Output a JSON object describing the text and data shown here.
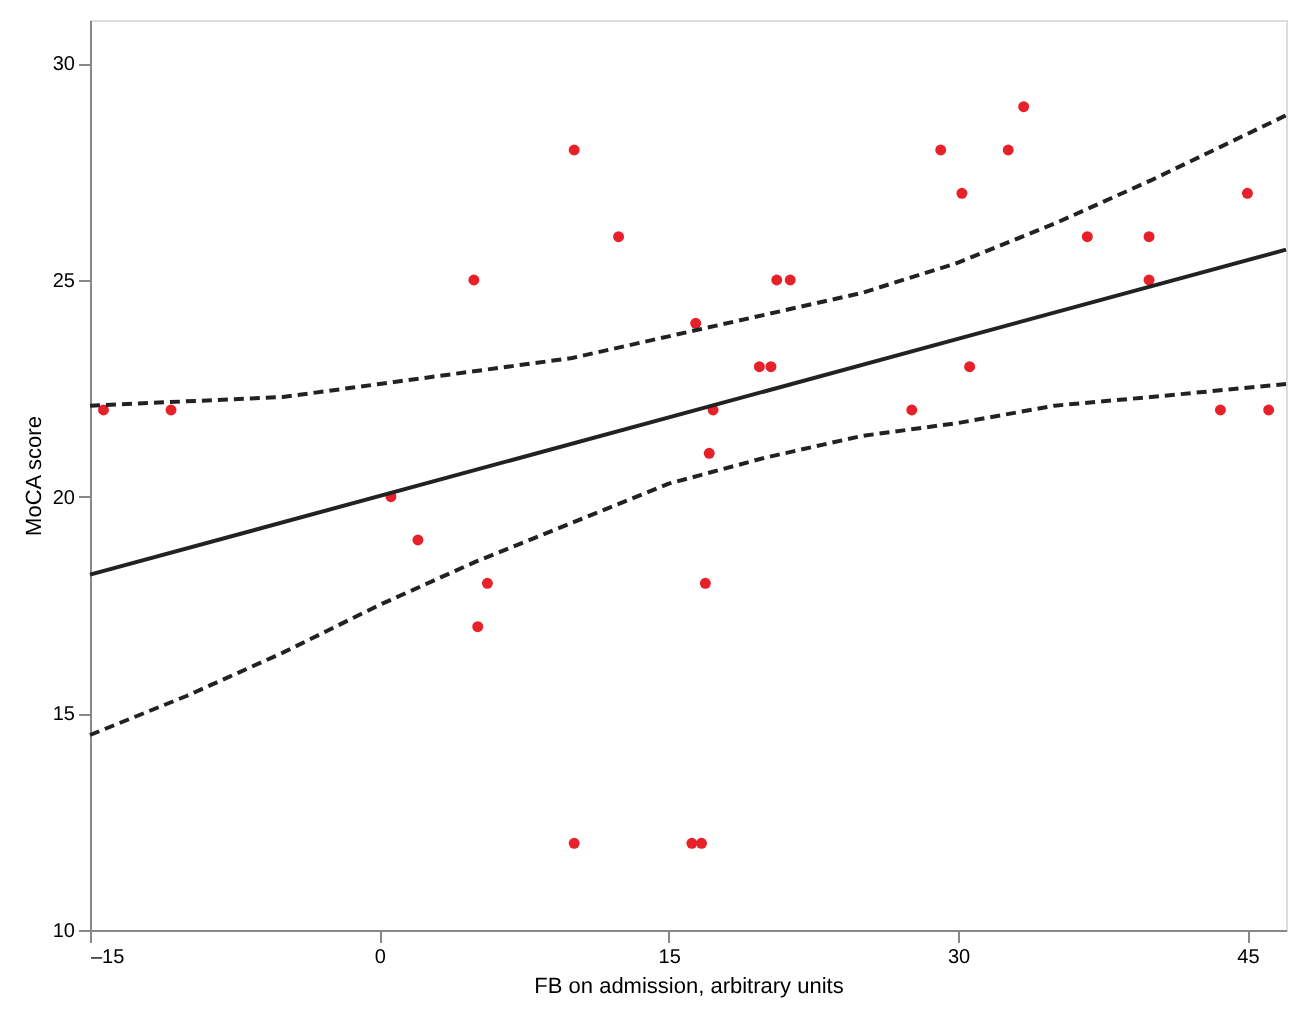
{
  "chart_data": {
    "type": "scatter",
    "xlabel": "FB on admission, arbitrary units",
    "ylabel": "MoCA score",
    "xlim": [
      -15,
      47
    ],
    "xticks": [
      {
        "value": -15,
        "label": "–15"
      },
      0,
      15,
      30,
      45
    ],
    "ylim": [
      10,
      31
    ],
    "yticks": [
      10,
      15,
      20,
      25,
      30
    ],
    "grid": false,
    "series": [
      {
        "color": "#e8202a",
        "marker": "circle",
        "x": [
          -14.3,
          -10.8,
          0.6,
          2,
          4.9,
          5.1,
          5.6,
          10.1,
          10.1,
          12.4,
          16.4,
          16.2,
          16.7,
          16.9,
          17.1,
          17.3,
          19.7,
          20.3,
          20.6,
          21.3,
          27.6,
          29.1,
          30.2,
          30.6,
          32.6,
          33.4,
          36.7,
          39.9,
          39.9,
          43.6,
          45,
          46.1
        ],
        "values": [
          22,
          22,
          20,
          19,
          25,
          17,
          18,
          28,
          12,
          26,
          24,
          12,
          12,
          18,
          21,
          22,
          23,
          23,
          25,
          25,
          22,
          28,
          27,
          23,
          28,
          29,
          26,
          26,
          25,
          22,
          27,
          22
        ]
      },
      {
        "type": "line",
        "color": "#222222",
        "line_style": "solid",
        "x": [
          -15,
          47
        ],
        "values": [
          18.2,
          25.7
        ]
      },
      {
        "type": "line",
        "color": "#222222",
        "line_style": "dashed",
        "x": [
          -15,
          -5,
          0,
          5,
          10,
          15,
          20,
          25,
          30,
          35,
          40,
          47
        ],
        "values": [
          22.1,
          22.3,
          22.6,
          22.9,
          23.2,
          23.7,
          24.2,
          24.7,
          25.4,
          26.3,
          27.3,
          28.8
        ]
      },
      {
        "type": "line",
        "color": "#222222",
        "line_style": "dashed",
        "x": [
          -15,
          -10,
          -5,
          0,
          5,
          10,
          15,
          20,
          25,
          30,
          35,
          40,
          47
        ],
        "values": [
          14.5,
          15.4,
          16.4,
          17.5,
          18.5,
          19.4,
          20.3,
          20.9,
          21.4,
          21.7,
          22.1,
          22.3,
          22.6
        ]
      }
    ]
  }
}
